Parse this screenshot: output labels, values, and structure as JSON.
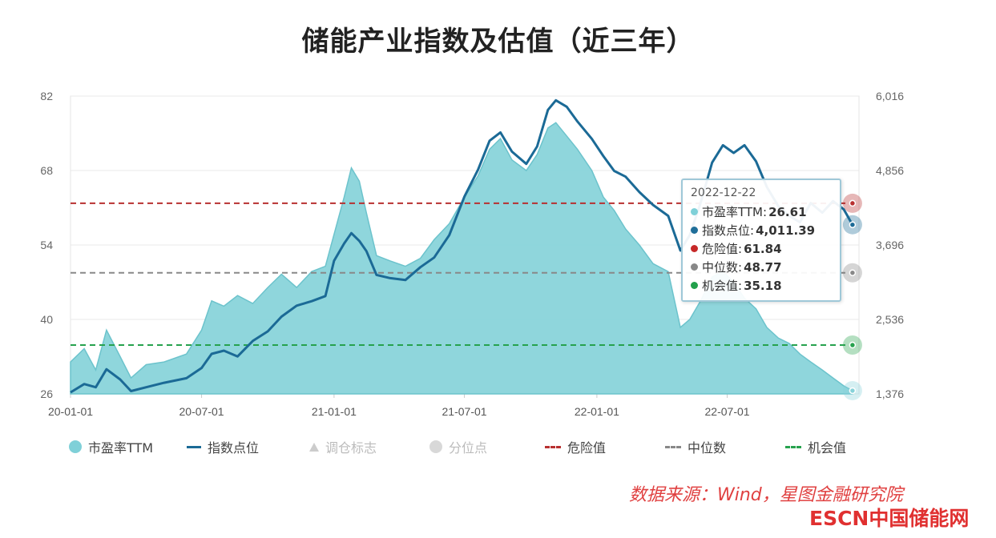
{
  "title": "储能产业指数及估值（近三年）",
  "legend": {
    "pe": "市盈率TTM",
    "index": "指数点位",
    "adjust": "调仓标志",
    "quantile": "分位点",
    "danger": "危险值",
    "median": "中位数",
    "chance": "机会值"
  },
  "tooltip": {
    "date": "2022-12-22",
    "rows": [
      {
        "label": "市盈率TTM:",
        "value": "26.61",
        "color": "#7fd0d8"
      },
      {
        "label": "指数点位:",
        "value": "4,011.39",
        "color": "#1f6e99"
      },
      {
        "label": "危险值:",
        "value": "61.84",
        "color": "#c62828"
      },
      {
        "label": "中位数:",
        "value": "48.77",
        "color": "#888888"
      },
      {
        "label": "机会值:",
        "value": "35.18",
        "color": "#22a04b"
      }
    ]
  },
  "source": "数据来源：Wind，星图金融研究院",
  "logo": "ESCN中国储能网",
  "colors": {
    "pe_fill": "#86d2d9",
    "pe_line": "#6cc3cc",
    "index_line": "#1b6a96",
    "danger": "#b83030",
    "median": "#888888",
    "chance": "#27a24e",
    "grid": "#e8e8e8"
  },
  "chart_data": {
    "type": "line",
    "x_ticks": [
      "20-01-01",
      "20-07-01",
      "21-01-01",
      "21-07-01",
      "22-01-01",
      "22-07-01"
    ],
    "x_range": [
      "2020-01-01",
      "2022-12-31"
    ],
    "y_left": {
      "ticks": [
        "26",
        "40",
        "54",
        "68",
        "82"
      ],
      "range": [
        26,
        82
      ]
    },
    "y_right": {
      "ticks": [
        "1,376",
        "2,536",
        "3,696",
        "4,856",
        "6,016"
      ],
      "range": [
        1376,
        6016
      ]
    },
    "reference_lines": [
      {
        "name": "危险值",
        "value": 61.84,
        "axis": "left"
      },
      {
        "name": "中位数",
        "value": 48.77,
        "axis": "left"
      },
      {
        "name": "机会值",
        "value": 35.18,
        "axis": "left"
      }
    ],
    "series": [
      {
        "name": "市盈率TTM",
        "type": "area",
        "axis": "left",
        "points": [
          [
            "2020-01-01",
            32.0
          ],
          [
            "2020-01-20",
            34.5
          ],
          [
            "2020-02-05",
            30.5
          ],
          [
            "2020-02-20",
            38.0
          ],
          [
            "2020-03-10",
            33.0
          ],
          [
            "2020-03-25",
            29.0
          ],
          [
            "2020-04-15",
            31.5
          ],
          [
            "2020-05-10",
            32.0
          ],
          [
            "2020-06-10",
            33.5
          ],
          [
            "2020-07-01",
            38.0
          ],
          [
            "2020-07-15",
            43.5
          ],
          [
            "2020-08-01",
            42.5
          ],
          [
            "2020-08-20",
            44.5
          ],
          [
            "2020-09-10",
            43.0
          ],
          [
            "2020-10-01",
            46.0
          ],
          [
            "2020-10-20",
            48.5
          ],
          [
            "2020-11-10",
            46.0
          ],
          [
            "2020-12-01",
            49.0
          ],
          [
            "2020-12-20",
            50.0
          ],
          [
            "2021-01-01",
            56.0
          ],
          [
            "2021-01-15",
            63.0
          ],
          [
            "2021-01-25",
            68.5
          ],
          [
            "2021-02-05",
            66.0
          ],
          [
            "2021-02-15",
            60.0
          ],
          [
            "2021-03-01",
            52.0
          ],
          [
            "2021-03-20",
            51.0
          ],
          [
            "2021-04-10",
            50.0
          ],
          [
            "2021-05-01",
            51.5
          ],
          [
            "2021-05-20",
            55.0
          ],
          [
            "2021-06-10",
            58.0
          ],
          [
            "2021-07-01",
            63.0
          ],
          [
            "2021-07-20",
            67.0
          ],
          [
            "2021-08-05",
            72.0
          ],
          [
            "2021-08-20",
            74.0
          ],
          [
            "2021-09-05",
            70.0
          ],
          [
            "2021-09-25",
            68.0
          ],
          [
            "2021-10-10",
            71.0
          ],
          [
            "2021-10-25",
            76.0
          ],
          [
            "2021-11-05",
            77.0
          ],
          [
            "2021-11-20",
            74.5
          ],
          [
            "2021-12-05",
            72.0
          ],
          [
            "2021-12-25",
            68.0
          ],
          [
            "2022-01-10",
            63.0
          ],
          [
            "2022-01-25",
            60.5
          ],
          [
            "2022-02-10",
            57.0
          ],
          [
            "2022-03-01",
            54.0
          ],
          [
            "2022-03-20",
            50.5
          ],
          [
            "2022-04-10",
            49.0
          ],
          [
            "2022-04-27",
            38.5
          ],
          [
            "2022-05-10",
            40.0
          ],
          [
            "2022-05-25",
            43.5
          ],
          [
            "2022-06-10",
            48.0
          ],
          [
            "2022-06-25",
            49.0
          ],
          [
            "2022-07-10",
            47.0
          ],
          [
            "2022-07-25",
            44.0
          ],
          [
            "2022-08-10",
            42.0
          ],
          [
            "2022-08-25",
            38.5
          ],
          [
            "2022-09-10",
            36.5
          ],
          [
            "2022-09-25",
            35.5
          ],
          [
            "2022-10-10",
            33.5
          ],
          [
            "2022-10-25",
            32.0
          ],
          [
            "2022-11-10",
            30.5
          ],
          [
            "2022-11-25",
            29.0
          ],
          [
            "2022-12-10",
            27.5
          ],
          [
            "2022-12-22",
            26.61
          ]
        ]
      },
      {
        "name": "指数点位",
        "type": "line",
        "axis": "right",
        "points": [
          [
            "2020-01-01",
            1400
          ],
          [
            "2020-01-20",
            1530
          ],
          [
            "2020-02-05",
            1480
          ],
          [
            "2020-02-20",
            1760
          ],
          [
            "2020-03-10",
            1600
          ],
          [
            "2020-03-25",
            1420
          ],
          [
            "2020-04-15",
            1480
          ],
          [
            "2020-05-10",
            1550
          ],
          [
            "2020-06-10",
            1620
          ],
          [
            "2020-07-01",
            1780
          ],
          [
            "2020-07-15",
            2000
          ],
          [
            "2020-08-01",
            2050
          ],
          [
            "2020-08-20",
            1960
          ],
          [
            "2020-09-10",
            2200
          ],
          [
            "2020-10-01",
            2350
          ],
          [
            "2020-10-20",
            2580
          ],
          [
            "2020-11-10",
            2750
          ],
          [
            "2020-12-01",
            2820
          ],
          [
            "2020-12-20",
            2900
          ],
          [
            "2021-01-01",
            3450
          ],
          [
            "2021-01-15",
            3720
          ],
          [
            "2021-01-25",
            3880
          ],
          [
            "2021-02-05",
            3760
          ],
          [
            "2021-02-15",
            3600
          ],
          [
            "2021-03-01",
            3230
          ],
          [
            "2021-03-20",
            3180
          ],
          [
            "2021-04-10",
            3150
          ],
          [
            "2021-05-01",
            3350
          ],
          [
            "2021-05-20",
            3500
          ],
          [
            "2021-06-10",
            3850
          ],
          [
            "2021-07-01",
            4450
          ],
          [
            "2021-07-20",
            4870
          ],
          [
            "2021-08-05",
            5320
          ],
          [
            "2021-08-20",
            5450
          ],
          [
            "2021-09-05",
            5150
          ],
          [
            "2021-09-25",
            4960
          ],
          [
            "2021-10-10",
            5230
          ],
          [
            "2021-10-25",
            5800
          ],
          [
            "2021-11-05",
            5950
          ],
          [
            "2021-11-20",
            5850
          ],
          [
            "2021-12-05",
            5620
          ],
          [
            "2021-12-25",
            5350
          ],
          [
            "2022-01-10",
            5080
          ],
          [
            "2022-01-25",
            4850
          ],
          [
            "2022-02-10",
            4760
          ],
          [
            "2022-03-01",
            4520
          ],
          [
            "2022-03-20",
            4320
          ],
          [
            "2022-04-10",
            4150
          ],
          [
            "2022-04-27",
            3610
          ],
          [
            "2022-05-10",
            3850
          ],
          [
            "2022-05-25",
            4350
          ],
          [
            "2022-06-10",
            4980
          ],
          [
            "2022-06-25",
            5250
          ],
          [
            "2022-07-10",
            5130
          ],
          [
            "2022-07-25",
            5250
          ],
          [
            "2022-08-10",
            5000
          ],
          [
            "2022-08-25",
            4600
          ],
          [
            "2022-09-10",
            4300
          ],
          [
            "2022-09-25",
            4150
          ],
          [
            "2022-10-10",
            4050
          ],
          [
            "2022-10-25",
            4350
          ],
          [
            "2022-11-10",
            4200
          ],
          [
            "2022-11-25",
            4380
          ],
          [
            "2022-12-10",
            4250
          ],
          [
            "2022-12-22",
            4011.39
          ]
        ]
      }
    ]
  }
}
